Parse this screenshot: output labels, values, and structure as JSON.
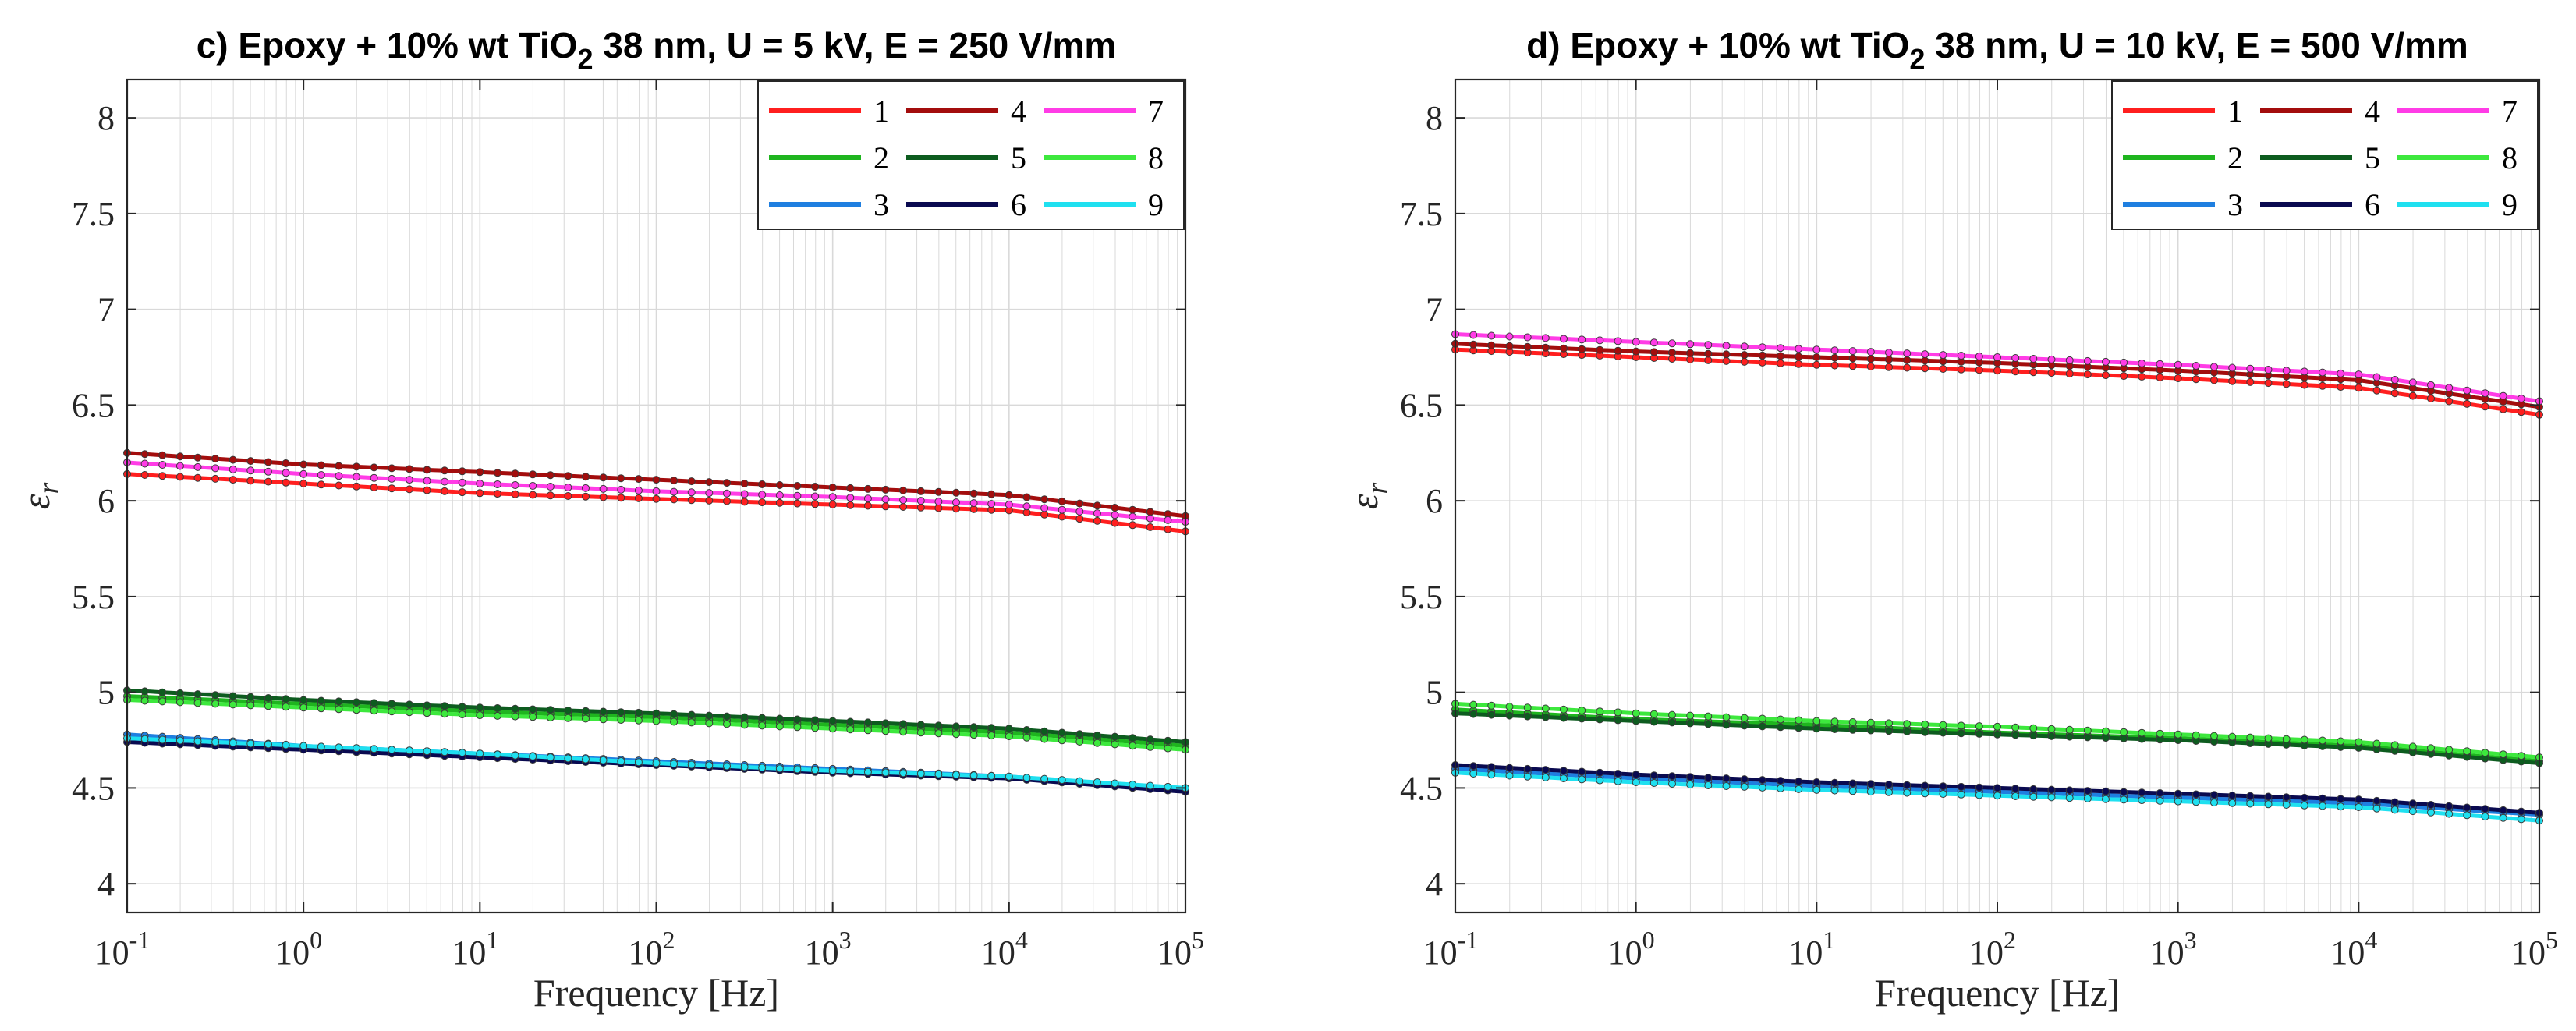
{
  "chart_data": [
    {
      "type": "line",
      "title_prefix": "c) Epoxy + 10% wt TiO",
      "title_sub": "2",
      "title_suffix": " 38 nm, U = 5 kV, E = 250 V/mm",
      "xlabel": "Frequency [Hz]",
      "ylabel": "ε",
      "ylabel_sub": "r",
      "xscale": "log",
      "xlim": [
        0.1,
        100000
      ],
      "ylim": [
        3.85,
        8.2
      ],
      "yticks": [
        "4",
        "4.5",
        "5",
        "5.5",
        "6",
        "6.5",
        "7",
        "7.5",
        "8"
      ],
      "xtick_base": "10",
      "xtick_exponents": [
        "-1",
        "0",
        "1",
        "2",
        "3",
        "4",
        "5"
      ],
      "grid": true,
      "legend_position": "top-right",
      "series": [
        {
          "name": "1",
          "color": "#ff1f1f",
          "x": [
            0.1,
            1,
            10,
            100,
            1000,
            10000,
            100000
          ],
          "y": [
            6.14,
            6.09,
            6.04,
            6.01,
            5.98,
            5.95,
            5.84
          ]
        },
        {
          "name": "2",
          "color": "#1fb51f",
          "x": [
            0.1,
            1,
            10,
            100,
            1000,
            10000,
            100000
          ],
          "y": [
            4.98,
            4.94,
            4.9,
            4.87,
            4.83,
            4.79,
            4.72
          ]
        },
        {
          "name": "3",
          "color": "#1f7fe0",
          "x": [
            0.1,
            1,
            10,
            100,
            1000,
            10000,
            100000
          ],
          "y": [
            4.78,
            4.72,
            4.68,
            4.64,
            4.6,
            4.56,
            4.49
          ]
        },
        {
          "name": "4",
          "color": "#a30d0d",
          "x": [
            0.1,
            1,
            10,
            100,
            1000,
            10000,
            100000
          ],
          "y": [
            6.25,
            6.19,
            6.15,
            6.11,
            6.07,
            6.03,
            5.92
          ]
        },
        {
          "name": "5",
          "color": "#0d5c1f",
          "x": [
            0.1,
            1,
            10,
            100,
            1000,
            10000,
            100000
          ],
          "y": [
            5.01,
            4.96,
            4.92,
            4.89,
            4.85,
            4.81,
            4.74
          ]
        },
        {
          "name": "6",
          "color": "#0a0a50",
          "x": [
            0.1,
            1,
            10,
            100,
            1000,
            10000,
            100000
          ],
          "y": [
            4.74,
            4.7,
            4.66,
            4.62,
            4.58,
            4.55,
            4.48
          ]
        },
        {
          "name": "7",
          "color": "#ff3ce6",
          "x": [
            0.1,
            1,
            10,
            100,
            1000,
            10000,
            100000
          ],
          "y": [
            6.2,
            6.14,
            6.09,
            6.05,
            6.02,
            5.98,
            5.89
          ]
        },
        {
          "name": "8",
          "color": "#3de83d",
          "x": [
            0.1,
            1,
            10,
            100,
            1000,
            10000,
            100000
          ],
          "y": [
            4.96,
            4.92,
            4.88,
            4.85,
            4.81,
            4.77,
            4.7
          ]
        },
        {
          "name": "9",
          "color": "#1fe0f0",
          "x": [
            0.1,
            1,
            10,
            100,
            1000,
            10000,
            100000
          ],
          "y": [
            4.76,
            4.72,
            4.68,
            4.63,
            4.59,
            4.56,
            4.5
          ]
        }
      ]
    },
    {
      "type": "line",
      "title_prefix": "d) Epoxy + 10% wt TiO",
      "title_sub": "2",
      "title_suffix": " 38 nm, U = 10 kV, E = 500 V/mm",
      "xlabel": "Frequency [Hz]",
      "ylabel": "ε",
      "ylabel_sub": "r",
      "xscale": "log",
      "xlim": [
        0.1,
        100000
      ],
      "ylim": [
        3.85,
        8.2
      ],
      "yticks": [
        "4",
        "4.5",
        "5",
        "5.5",
        "6",
        "6.5",
        "7",
        "7.5",
        "8"
      ],
      "xtick_base": "10",
      "xtick_exponents": [
        "-1",
        "0",
        "1",
        "2",
        "3",
        "4",
        "5"
      ],
      "grid": true,
      "legend_position": "top-right",
      "series": [
        {
          "name": "1",
          "color": "#ff1f1f",
          "x": [
            0.1,
            1,
            10,
            100,
            1000,
            10000,
            100000
          ],
          "y": [
            6.79,
            6.75,
            6.71,
            6.68,
            6.64,
            6.59,
            6.45
          ]
        },
        {
          "name": "2",
          "color": "#1fb51f",
          "x": [
            0.1,
            1,
            10,
            100,
            1000,
            10000,
            100000
          ],
          "y": [
            4.91,
            4.86,
            4.83,
            4.79,
            4.76,
            4.72,
            4.64
          ]
        },
        {
          "name": "3",
          "color": "#1f7fe0",
          "x": [
            0.1,
            1,
            10,
            100,
            1000,
            10000,
            100000
          ],
          "y": [
            4.6,
            4.55,
            4.51,
            4.48,
            4.45,
            4.42,
            4.36
          ]
        },
        {
          "name": "4",
          "color": "#a30d0d",
          "x": [
            0.1,
            1,
            10,
            100,
            1000,
            10000,
            100000
          ],
          "y": [
            6.82,
            6.78,
            6.75,
            6.72,
            6.68,
            6.63,
            6.49
          ]
        },
        {
          "name": "5",
          "color": "#0d5c1f",
          "x": [
            0.1,
            1,
            10,
            100,
            1000,
            10000,
            100000
          ],
          "y": [
            4.89,
            4.85,
            4.81,
            4.78,
            4.75,
            4.71,
            4.63
          ]
        },
        {
          "name": "6",
          "color": "#0a0a50",
          "x": [
            0.1,
            1,
            10,
            100,
            1000,
            10000,
            100000
          ],
          "y": [
            4.62,
            4.57,
            4.53,
            4.5,
            4.47,
            4.44,
            4.37
          ]
        },
        {
          "name": "7",
          "color": "#ff3ce6",
          "x": [
            0.1,
            1,
            10,
            100,
            1000,
            10000,
            100000
          ],
          "y": [
            6.87,
            6.83,
            6.79,
            6.75,
            6.71,
            6.66,
            6.52
          ]
        },
        {
          "name": "8",
          "color": "#3de83d",
          "x": [
            0.1,
            1,
            10,
            100,
            1000,
            10000,
            100000
          ],
          "y": [
            4.94,
            4.89,
            4.85,
            4.82,
            4.78,
            4.74,
            4.66
          ]
        },
        {
          "name": "9",
          "color": "#1fe0f0",
          "x": [
            0.1,
            1,
            10,
            100,
            1000,
            10000,
            100000
          ],
          "y": [
            4.58,
            4.53,
            4.49,
            4.46,
            4.43,
            4.4,
            4.33
          ]
        }
      ]
    }
  ]
}
